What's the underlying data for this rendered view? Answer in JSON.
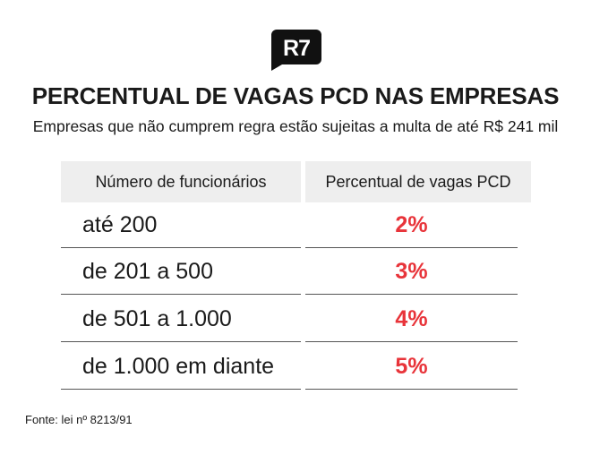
{
  "logo": {
    "text": "R7",
    "icon": "r7-logo"
  },
  "title": "PERCENTUAL DE VAGAS PCD NAS EMPRESAS",
  "subtitle": "Empresas que não cumprem regra estão sujeitas a multa de até R$ 241 mil",
  "table": {
    "headers": [
      "Número de funcionários",
      "Percentual de vagas PCD"
    ],
    "rows": [
      {
        "employees": "até 200",
        "percent": "2%"
      },
      {
        "employees": "de 201 a 500",
        "percent": "3%"
      },
      {
        "employees": "de 501 a 1.000",
        "percent": "4%"
      },
      {
        "employees": "de 1.000 em diante",
        "percent": "5%"
      }
    ]
  },
  "source": "Fonte: lei nº 8213/91",
  "colors": {
    "accent": "#e8343a",
    "header_bg": "#eeeeee",
    "logo_bg": "#111111"
  }
}
